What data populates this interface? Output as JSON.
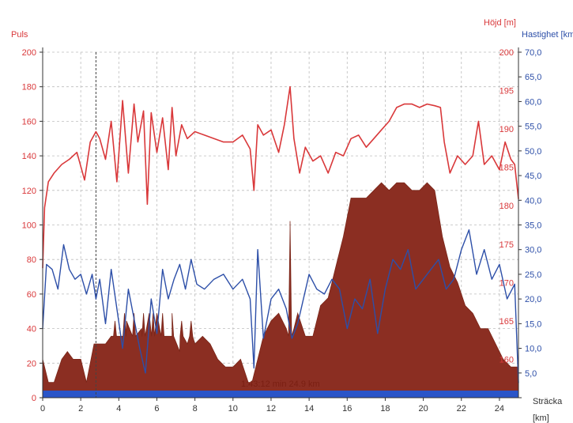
{
  "chart_data": {
    "type": "line",
    "axes": {
      "left": {
        "label": "Puls",
        "ylim": [
          0,
          200
        ],
        "ticks": [
          "0",
          "20",
          "40",
          "60",
          "80",
          "100",
          "120",
          "140",
          "160",
          "180",
          "200"
        ]
      },
      "right1": {
        "label": "Höjd [m]",
        "ylim": [
          155,
          200
        ],
        "ticks": [
          "160",
          "165",
          "170",
          "175",
          "180",
          "185",
          "190",
          "195",
          "200"
        ]
      },
      "right2": {
        "label": "Hastighet [km/h]",
        "ylim": [
          0,
          70
        ],
        "ticks": [
          "5,0",
          "10,0",
          "15,0",
          "20,0",
          "25,0",
          "30,0",
          "35,0",
          "40,0",
          "45,0",
          "50,0",
          "55,0",
          "60,0",
          "65,0",
          "70,0"
        ]
      },
      "x": {
        "label": "Sträcka",
        "unit": "[km]",
        "xlim": [
          0,
          25
        ],
        "ticks": [
          "0",
          "2",
          "4",
          "6",
          "8",
          "10",
          "12",
          "14",
          "16",
          "18",
          "20",
          "22",
          "24"
        ]
      }
    },
    "grid": true,
    "marker_line_km": 2.8,
    "annotation": "1:43:12 min 24.9 km",
    "series": [
      {
        "id": "puls",
        "color": "#d9383a",
        "x": [
          0,
          0.1,
          0.3,
          0.6,
          1.0,
          1.4,
          1.8,
          2.2,
          2.5,
          2.8,
          3.0,
          3.3,
          3.6,
          3.9,
          4.2,
          4.5,
          4.8,
          5.0,
          5.3,
          5.5,
          5.7,
          6.0,
          6.3,
          6.6,
          6.8,
          7.0,
          7.3,
          7.6,
          8.0,
          8.5,
          9.0,
          9.5,
          10.0,
          10.5,
          10.9,
          11.1,
          11.3,
          11.6,
          12.0,
          12.4,
          12.7,
          13.0,
          13.2,
          13.5,
          13.8,
          14.2,
          14.6,
          15.0,
          15.4,
          15.8,
          16.2,
          16.6,
          17.0,
          17.4,
          17.8,
          18.2,
          18.6,
          19.0,
          19.4,
          19.8,
          20.2,
          20.6,
          20.9,
          21.1,
          21.4,
          21.8,
          22.2,
          22.6,
          22.9,
          23.2,
          23.6,
          24.0,
          24.3,
          24.6,
          24.8,
          25.0
        ],
        "values": [
          75,
          110,
          125,
          130,
          135,
          138,
          142,
          126,
          148,
          154,
          150,
          138,
          160,
          125,
          172,
          130,
          170,
          148,
          166,
          112,
          165,
          142,
          162,
          132,
          168,
          140,
          158,
          150,
          154,
          152,
          150,
          148,
          148,
          152,
          144,
          120,
          158,
          152,
          155,
          142,
          158,
          180,
          150,
          130,
          145,
          137,
          140,
          130,
          142,
          140,
          150,
          152,
          145,
          150,
          155,
          160,
          168,
          170,
          170,
          168,
          170,
          169,
          168,
          148,
          130,
          140,
          135,
          140,
          160,
          135,
          140,
          132,
          148,
          138,
          135,
          115
        ]
      },
      {
        "id": "hojd",
        "color": "#8b2e22",
        "x": [
          0,
          0.3,
          0.6,
          1.0,
          1.3,
          1.6,
          2.0,
          2.3,
          2.7,
          3.0,
          3.3,
          3.6,
          4.0,
          4.4,
          4.8,
          5.2,
          5.6,
          6.0,
          6.4,
          6.8,
          7.2,
          7.6,
          8.0,
          8.4,
          8.8,
          9.2,
          9.6,
          10.0,
          10.4,
          10.8,
          11.0,
          11.2,
          11.6,
          12.0,
          12.4,
          12.8,
          13.0,
          13.2,
          13.4,
          13.8,
          14.2,
          14.6,
          15.0,
          15.4,
          15.8,
          16.2,
          16.6,
          17.0,
          17.4,
          17.8,
          18.2,
          18.6,
          19.0,
          19.4,
          19.8,
          20.2,
          20.6,
          21.0,
          21.4,
          21.8,
          22.2,
          22.6,
          23.0,
          23.4,
          23.8,
          24.2,
          24.6,
          25.0
        ],
        "values": [
          160,
          157,
          157,
          160,
          161,
          160,
          160,
          157,
          162,
          162,
          162,
          163,
          163,
          165,
          166,
          164,
          166,
          166,
          163,
          163,
          161,
          162,
          162,
          163,
          162,
          160,
          159,
          159,
          160,
          157,
          157,
          159,
          163,
          165,
          166,
          164,
          177,
          164,
          166,
          163,
          163,
          167,
          168,
          172,
          176,
          181,
          181,
          181,
          182,
          183,
          182,
          183,
          183,
          182,
          182,
          183,
          182,
          176,
          172,
          170,
          167,
          166,
          164,
          164,
          162,
          160,
          159,
          159
        ],
        "spikes_km": [
          3.8,
          4.3,
          4.8,
          5.3,
          5.8,
          6.3,
          6.8,
          7.3,
          7.8,
          13.0
        ],
        "spike_values": [
          165,
          166,
          166,
          166,
          166,
          166,
          166,
          165,
          165,
          178
        ]
      },
      {
        "id": "hastighet",
        "color": "#2d4fa8",
        "x": [
          0,
          0.2,
          0.5,
          0.8,
          1.1,
          1.4,
          1.7,
          2.0,
          2.3,
          2.6,
          2.8,
          3.0,
          3.3,
          3.6,
          3.9,
          4.2,
          4.5,
          4.8,
          5.1,
          5.4,
          5.7,
          6.0,
          6.3,
          6.6,
          6.9,
          7.2,
          7.5,
          7.8,
          8.1,
          8.5,
          9.0,
          9.5,
          10.0,
          10.5,
          10.9,
          11.1,
          11.3,
          11.6,
          12.0,
          12.4,
          12.8,
          13.1,
          13.4,
          13.7,
          14.0,
          14.4,
          14.8,
          15.2,
          15.6,
          16.0,
          16.4,
          16.8,
          17.2,
          17.6,
          18.0,
          18.4,
          18.8,
          19.2,
          19.6,
          20.0,
          20.4,
          20.8,
          21.2,
          21.6,
          22.0,
          22.4,
          22.8,
          23.2,
          23.6,
          24.0,
          24.4,
          24.8,
          25.0
        ],
        "values": [
          14,
          27,
          26,
          22,
          31,
          26,
          24,
          25,
          21,
          25,
          20,
          24,
          15,
          26,
          18,
          10,
          22,
          16,
          10,
          5,
          20,
          13,
          26,
          20,
          24,
          27,
          22,
          28,
          23,
          22,
          24,
          25,
          22,
          24,
          20,
          6,
          30,
          12,
          20,
          22,
          18,
          12,
          15,
          20,
          25,
          22,
          21,
          24,
          22,
          14,
          20,
          18,
          24,
          13,
          22,
          28,
          26,
          30,
          22,
          24,
          26,
          28,
          22,
          24,
          30,
          34,
          25,
          30,
          24,
          27,
          20,
          23,
          3
        ]
      }
    ]
  }
}
